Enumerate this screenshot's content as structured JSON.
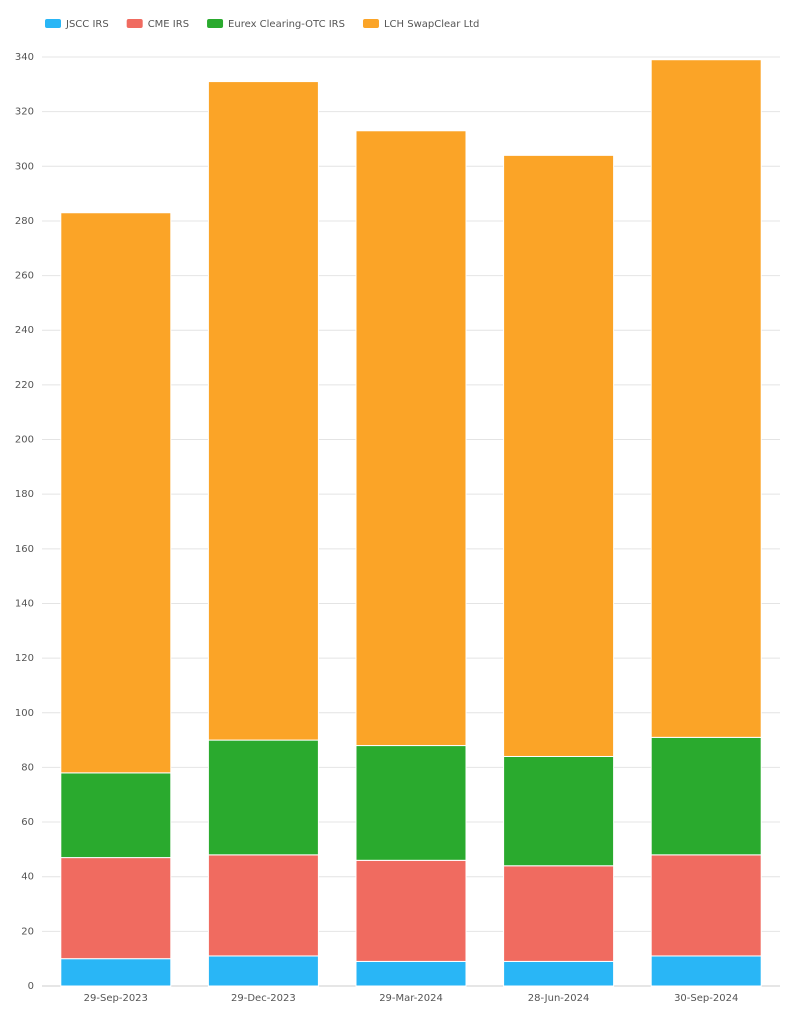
{
  "chart_data": {
    "type": "stacked_bar",
    "categories": [
      "29-Sep-2023",
      "29-Dec-2023",
      "29-Mar-2024",
      "28-Jun-2024",
      "30-Sep-2024"
    ],
    "series": [
      {
        "name": "JSCC IRS",
        "color": "#29b6f6",
        "values": [
          10,
          11,
          9,
          9,
          11
        ]
      },
      {
        "name": "CME IRS",
        "color": "#f06b60",
        "values": [
          37,
          37,
          37,
          35,
          37
        ]
      },
      {
        "name": "Eurex Clearing-OTC IRS",
        "color": "#2aaa2e",
        "values": [
          31,
          42,
          42,
          40,
          43
        ]
      },
      {
        "name": "LCH SwapClear Ltd",
        "color": "#fba427",
        "values": [
          205,
          241,
          225,
          220,
          248
        ]
      }
    ],
    "ylim": [
      0,
      340
    ],
    "yticks": [
      0,
      20,
      40,
      60,
      80,
      100,
      120,
      140,
      160,
      180,
      200,
      220,
      240,
      260,
      280,
      300,
      320,
      340
    ],
    "grid": true,
    "legend": "top-left"
  }
}
